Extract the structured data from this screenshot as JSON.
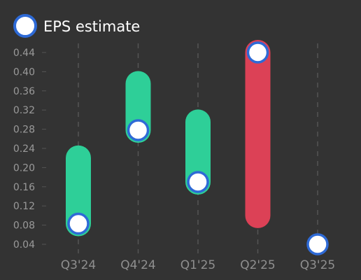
{
  "chart_data": {
    "type": "bar",
    "title": "",
    "xlabel": "",
    "ylabel": "",
    "legend": {
      "label": "EPS estimate",
      "position": "top-left"
    },
    "categories": [
      "Q3'24",
      "Q4'24",
      "Q1'25",
      "Q2'25",
      "Q3'25"
    ],
    "y_ticks": [
      "0.04",
      "0.08",
      "0.12",
      "0.16",
      "0.20",
      "0.24",
      "0.28",
      "0.32",
      "0.36",
      "0.40",
      "0.44"
    ],
    "ylim": [
      0.04,
      0.44
    ],
    "grid": {
      "vertical": true,
      "horizontal": false
    },
    "series": [
      {
        "name": "EPS estimate",
        "values": [
          0.083,
          0.278,
          0.17,
          0.44,
          0.04
        ]
      }
    ],
    "actual_ranges": [
      {
        "category": "Q3'24",
        "low": 0.083,
        "high": 0.22,
        "beat": true
      },
      {
        "category": "Q4'24",
        "low": 0.278,
        "high": 0.375,
        "beat": true
      },
      {
        "category": "Q1'25",
        "low": 0.17,
        "high": 0.295,
        "beat": true
      },
      {
        "category": "Q2'25",
        "low": 0.1,
        "high": 0.44,
        "beat": false
      },
      {
        "category": "Q3'25",
        "low": null,
        "high": null,
        "beat": null
      }
    ],
    "colors": {
      "beat": "#2ecf98",
      "miss": "#dc4156",
      "marker_fill": "#ffffff",
      "marker_stroke": "#2e6ad6",
      "background": "#333333",
      "grid": "#555555"
    }
  }
}
